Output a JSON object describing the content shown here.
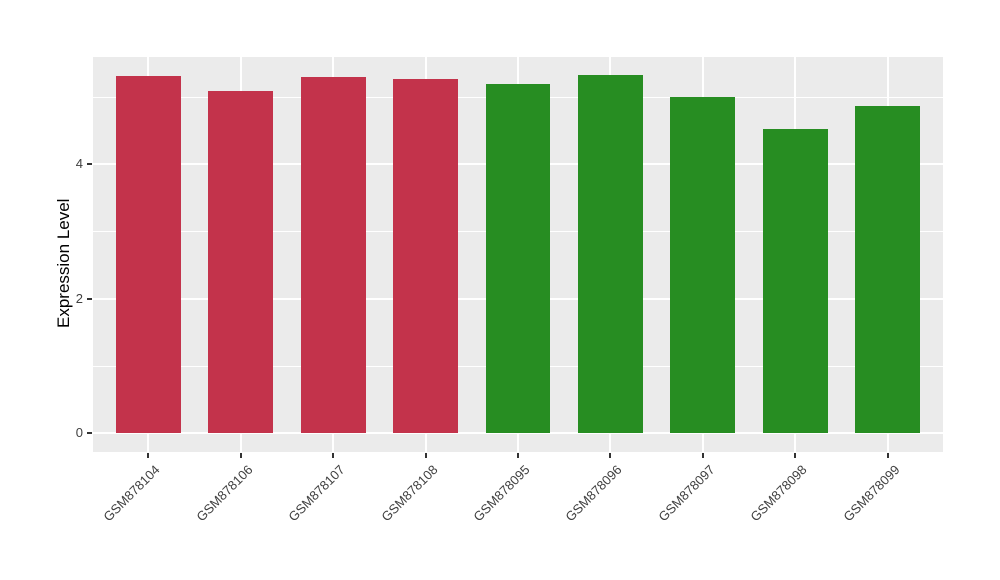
{
  "chart_data": {
    "type": "bar",
    "title": "",
    "ylabel": "Expression Level",
    "xlabel": "",
    "categories": [
      "GSM878104",
      "GSM878106",
      "GSM878107",
      "GSM878108",
      "GSM878095",
      "GSM878096",
      "GSM878097",
      "GSM878098",
      "GSM878099"
    ],
    "values": [
      5.32,
      5.1,
      5.3,
      5.27,
      5.2,
      5.33,
      5.01,
      4.53,
      4.87
    ],
    "bar_colors": [
      "#C3334B",
      "#C3334B",
      "#C3334B",
      "#C3334B",
      "#278D22",
      "#278D22",
      "#278D22",
      "#278D22",
      "#278D22"
    ],
    "group_colors": {
      "red_group": "#C3334B",
      "green_group": "#278D22"
    },
    "ylim": [
      -0.28,
      5.6
    ],
    "yticks_major": [
      0,
      2,
      4
    ],
    "ytick_labels": [
      "0",
      "2",
      "4"
    ],
    "yticks_minor": [
      1,
      3,
      5
    ],
    "bar_width_fraction": 0.7,
    "category_padding": 0.6,
    "grid": true,
    "legend": "none",
    "panel_background": "#EBEBEB",
    "grid_color": "#FFFFFF",
    "axis_text_color": "#404040"
  }
}
